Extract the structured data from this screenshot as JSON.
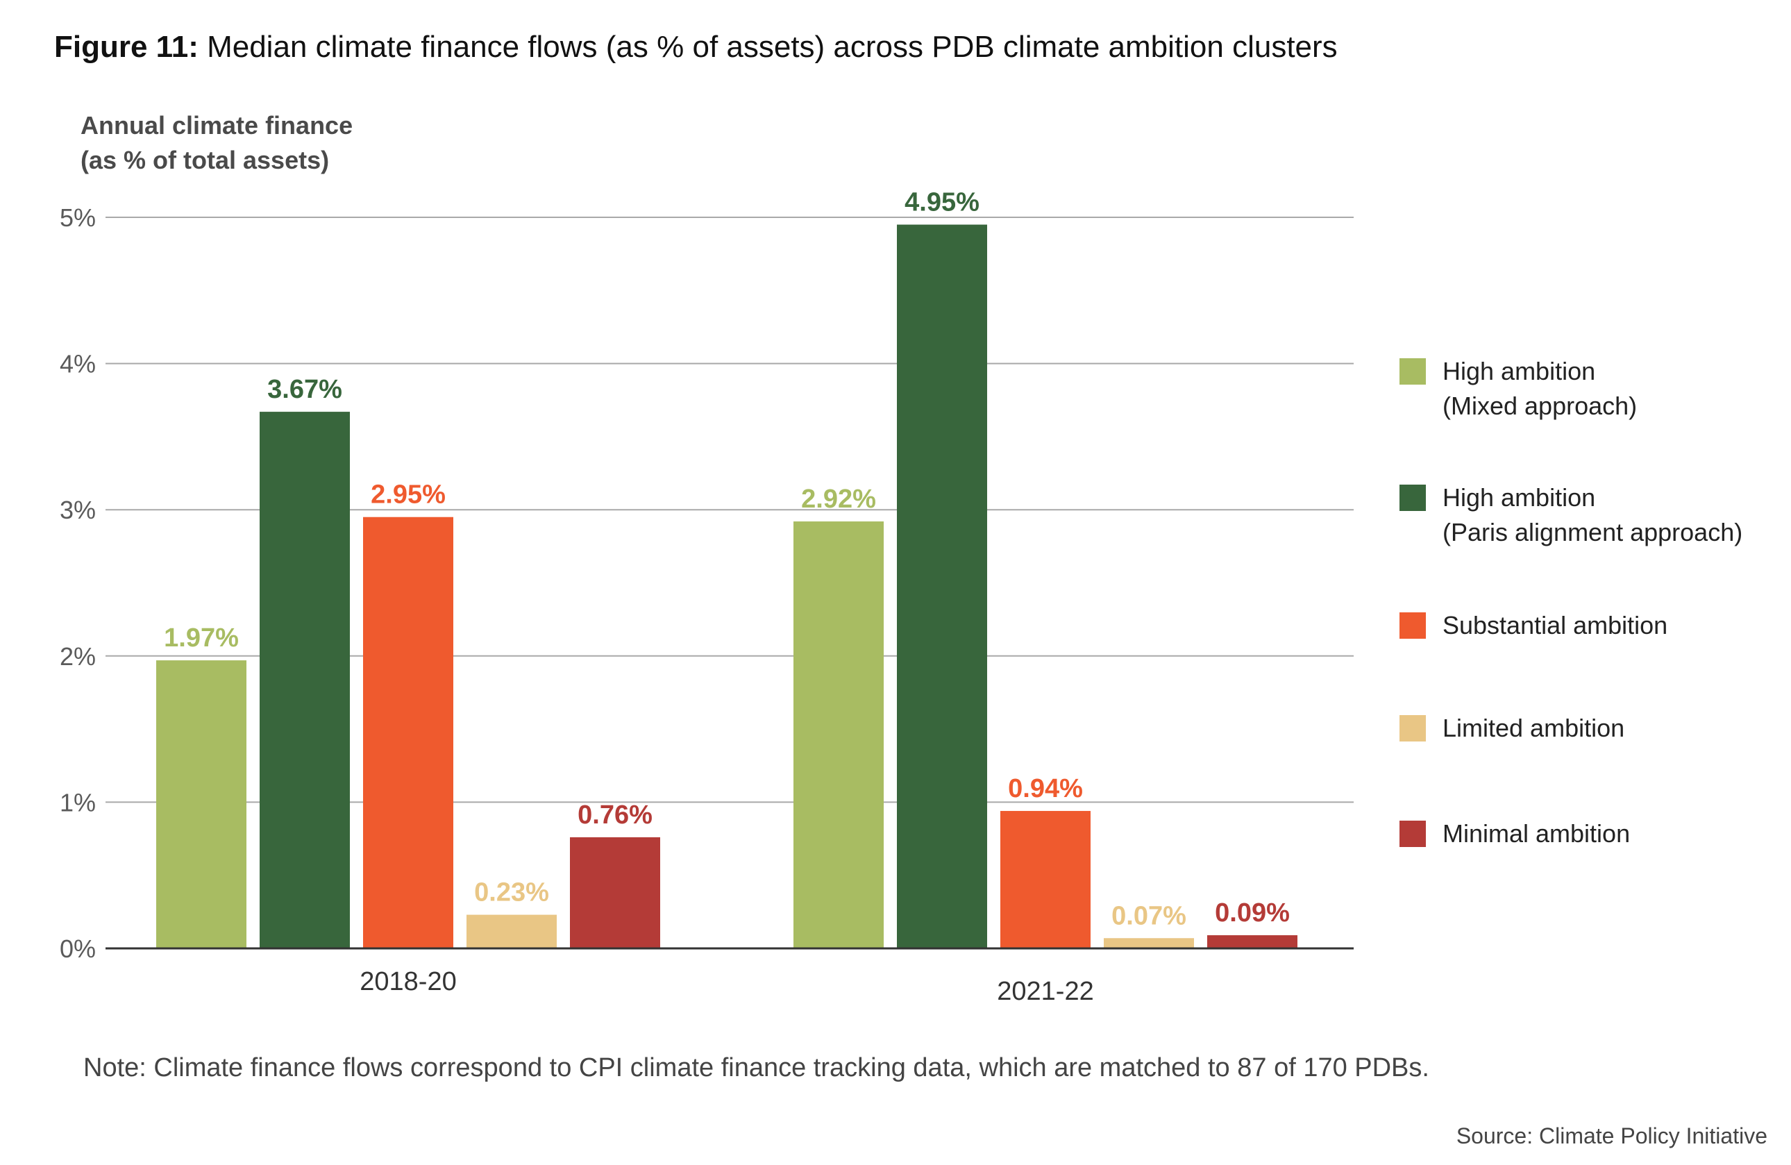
{
  "figure": {
    "title_prefix": "Figure 11:",
    "title_text": " Median climate finance flows (as % of assets) across PDB climate ambition clusters"
  },
  "axis": {
    "ylabel_line1": "Annual climate finance",
    "ylabel_line2": "(as % of total assets)"
  },
  "note": "Note: Climate finance flows correspond to CPI climate finance tracking data, which are matched to 87 of 170 PDBs.",
  "source": "Source: Climate Policy Initiative",
  "legend": [
    {
      "line1": "High ambition",
      "line2": "(Mixed approach)",
      "color": "#a8bc62"
    },
    {
      "line1": "High ambition",
      "line2": "(Paris alignment approach)",
      "color": "#38663c"
    },
    {
      "line1": "Substantial ambition",
      "line2": "",
      "color": "#ef5a2e"
    },
    {
      "line1": "Limited ambition",
      "line2": "",
      "color": "#e9c685"
    },
    {
      "line1": "Minimal ambition",
      "line2": "",
      "color": "#b43b37"
    }
  ],
  "chart_data": {
    "type": "bar",
    "categories": [
      "2018-20",
      "2021-22"
    ],
    "series": [
      {
        "name": "High ambition (Mixed approach)",
        "values": [
          1.97,
          2.92
        ],
        "labels": [
          "1.97%",
          "2.92%"
        ],
        "color": "#a8bc62"
      },
      {
        "name": "High ambition (Paris alignment approach)",
        "values": [
          3.67,
          4.95
        ],
        "labels": [
          "3.67%",
          "4.95%"
        ],
        "color": "#38663c"
      },
      {
        "name": "Substantial ambition",
        "values": [
          2.95,
          0.94
        ],
        "labels": [
          "2.95%",
          "0.94%"
        ],
        "color": "#ef5a2e"
      },
      {
        "name": "Limited ambition",
        "values": [
          0.23,
          0.07
        ],
        "labels": [
          "0.23%",
          "0.07%"
        ],
        "color": "#e9c685"
      },
      {
        "name": "Minimal ambition",
        "values": [
          0.76,
          0.09
        ],
        "labels": [
          "0.76%",
          "0.09%"
        ],
        "color": "#b43b37"
      }
    ],
    "ylim": [
      0,
      5
    ],
    "yticks": [
      0,
      1,
      2,
      3,
      4,
      5
    ],
    "ytick_labels": [
      "0%",
      "1%",
      "2%",
      "3%",
      "4%",
      "5%"
    ],
    "grid": true,
    "legend_position": "right"
  }
}
